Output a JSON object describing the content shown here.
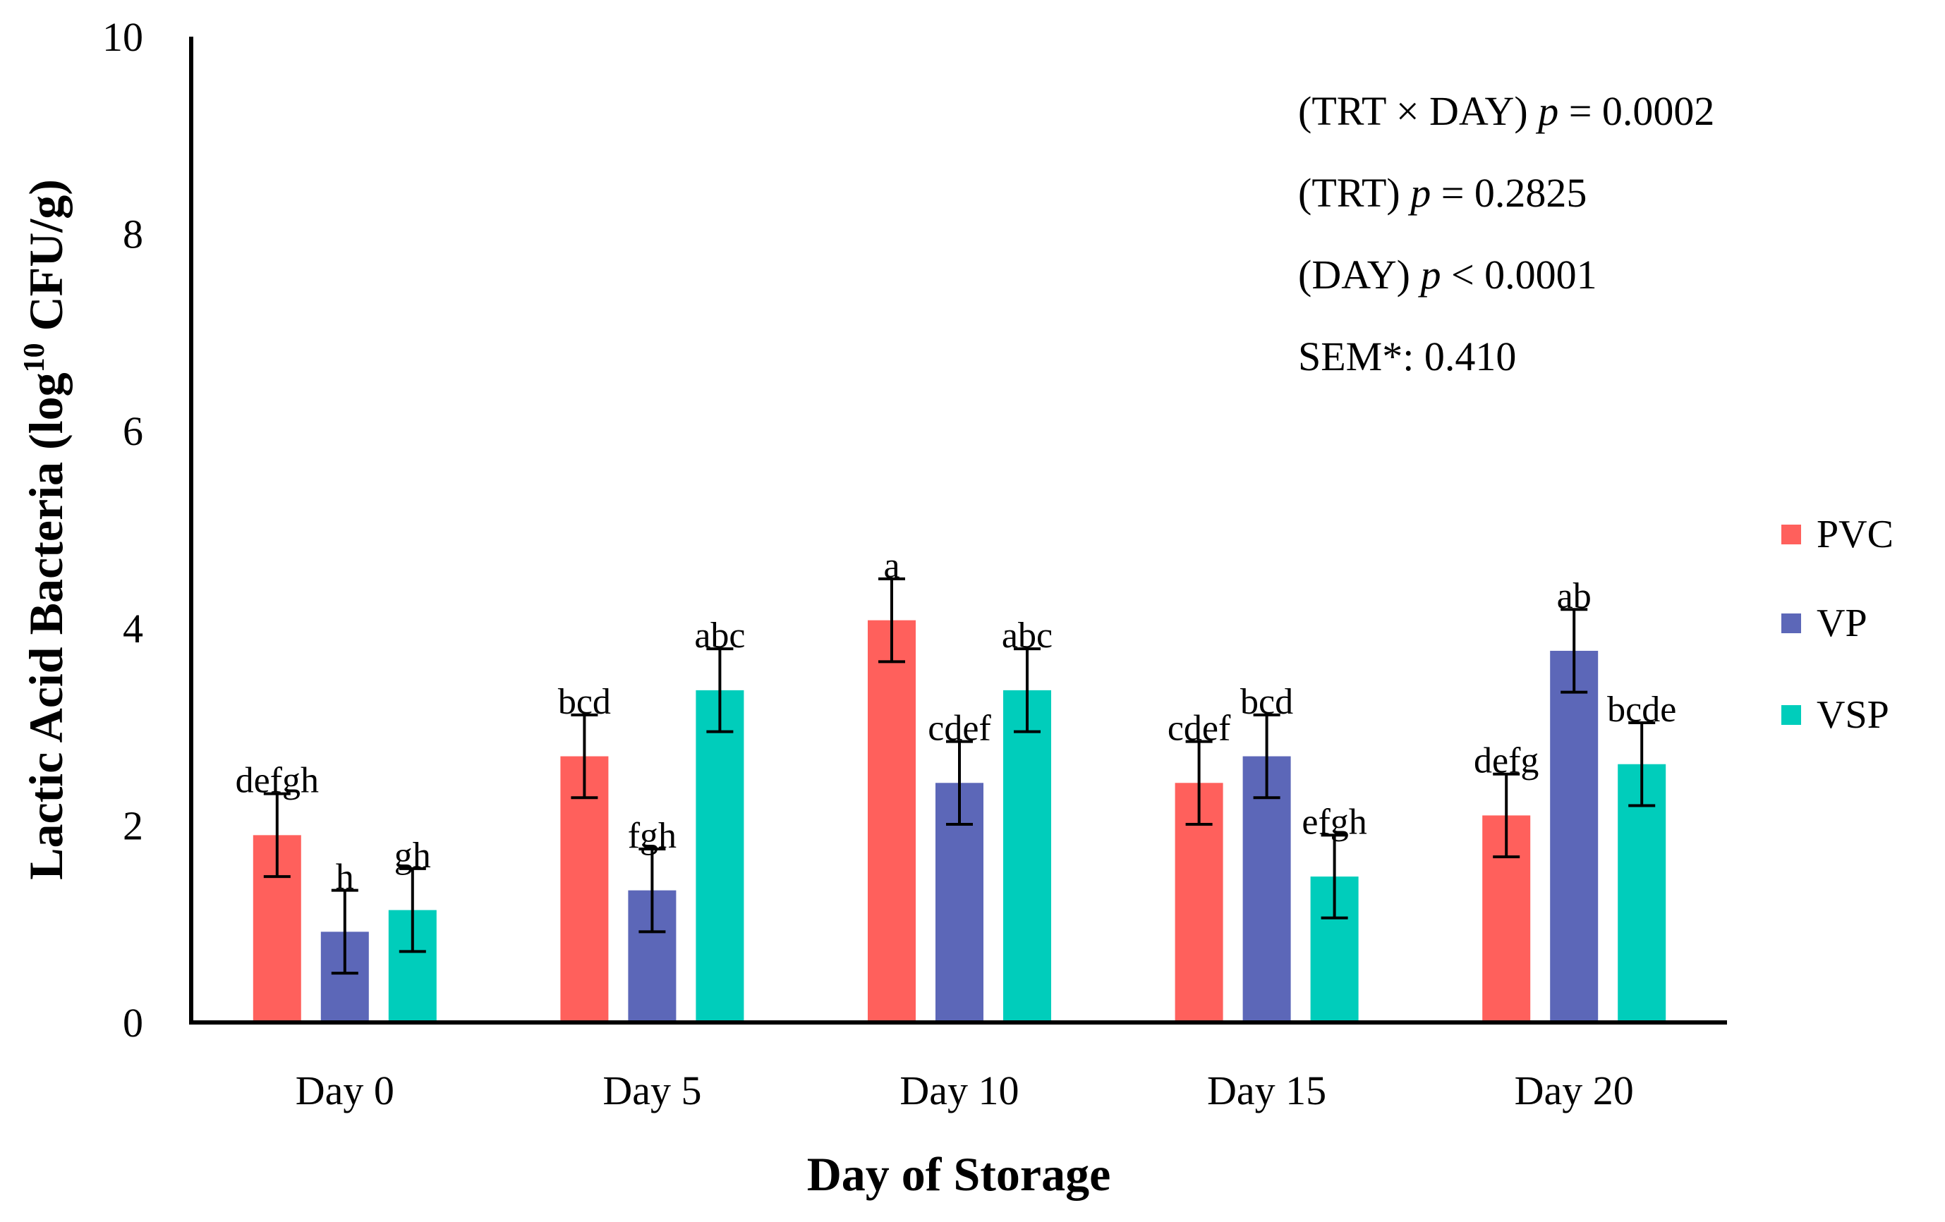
{
  "chart_data": {
    "type": "bar",
    "title": "",
    "xlabel": "Day of Storage",
    "ylabel_main": "Lactic Acid Bacteria (log",
    "ylabel_sup": "10",
    "ylabel_end": " CFU/g)",
    "ylim": [
      0,
      10
    ],
    "yticks": [
      "0",
      "2",
      "4",
      "6",
      "8",
      "10"
    ],
    "categories": [
      "Day 0",
      "Day 5",
      "Day 10",
      "Day 15",
      "Day 20"
    ],
    "series": [
      {
        "name": "PVC",
        "color": "#FF605C",
        "values": [
          1.9,
          2.7,
          4.08,
          2.43,
          2.1
        ],
        "errors": [
          0.42,
          0.42,
          0.42,
          0.42,
          0.42
        ],
        "labels": [
          "defgh",
          "bcd",
          "a",
          "cdef",
          "defg"
        ]
      },
      {
        "name": "VP",
        "color": "#5C67B8",
        "values": [
          0.92,
          1.34,
          2.43,
          2.7,
          3.77
        ],
        "errors": [
          0.42,
          0.42,
          0.42,
          0.42,
          0.42
        ],
        "labels": [
          "h",
          "fgh",
          "cdef",
          "bcd",
          "ab"
        ]
      },
      {
        "name": "VSP",
        "color": "#00CDBB",
        "values": [
          1.14,
          3.37,
          3.37,
          1.48,
          2.62
        ],
        "errors": [
          0.42,
          0.42,
          0.42,
          0.42,
          0.42
        ],
        "labels": [
          "gh",
          "abc",
          "abc",
          "efgh",
          "bcde"
        ]
      }
    ],
    "legend_position": "right",
    "grid": false
  },
  "stats": [
    {
      "pre": "(TRT × DAY) ",
      "p": "p",
      "post": " = 0.0002"
    },
    {
      "pre": "(TRT)  ",
      "p": "p",
      "post": " = 0.2825"
    },
    {
      "pre": "(DAY) ",
      "p": "p",
      "post": " < 0.0001"
    },
    {
      "pre": "SEM*: 0.410",
      "p": "",
      "post": ""
    }
  ]
}
